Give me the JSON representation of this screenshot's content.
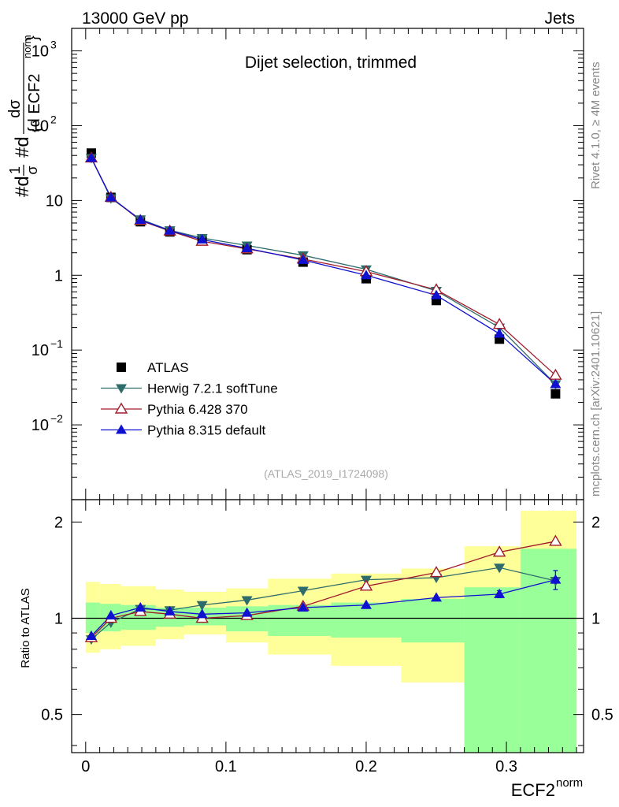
{
  "header": {
    "left": "13000 GeV pp",
    "right": "Jets"
  },
  "side": {
    "rivet": "Rivet 4.1.0, ≥ 4M events",
    "mcplots": "mcplots.cern.ch [arXiv:2401.10621]"
  },
  "chart_data": [
    {
      "type": "scatter",
      "yscale": "log",
      "title": "Dijet selection, trimmed",
      "analysis_tag": "(ATLAS_2019_I1724098)",
      "ylabel_parts": {
        "prefix": "#d",
        "frac1_num": "1",
        "frac1_den": "σ",
        "mid": "#d",
        "frac2_num": "dσ",
        "frac2_den": "{d ECF2",
        "frac2_sup": "norm",
        "frac2_close": "}"
      },
      "ylim": [
        0.001,
        2000
      ],
      "xlim": [
        -0.01,
        0.355
      ],
      "y_ticks": [
        {
          "v": 1000,
          "base": "10",
          "exp": "3"
        },
        {
          "v": 100,
          "base": "10",
          "exp": "2"
        },
        {
          "v": 10,
          "base": "10",
          "exp": ""
        },
        {
          "v": 1,
          "base": "1",
          "exp": ""
        },
        {
          "v": 0.1,
          "base": "10",
          "exp": "−1"
        },
        {
          "v": 0.01,
          "base": "10",
          "exp": "−2"
        }
      ],
      "x": [
        0.004,
        0.018,
        0.039,
        0.06,
        0.083,
        0.115,
        0.155,
        0.2,
        0.25,
        0.295,
        0.335
      ],
      "series": [
        {
          "name": "ATLAS",
          "marker": "square",
          "color": "#000000",
          "values": [
            43,
            11,
            5.2,
            3.8,
            2.9,
            2.2,
            1.5,
            0.9,
            0.46,
            0.14,
            0.026
          ]
        },
        {
          "name": "Herwig 7.2.1 softTune",
          "marker": "triangle-down",
          "color": "#2e6b6b",
          "values": [
            37,
            10.7,
            5.6,
            4.0,
            3.15,
            2.5,
            1.85,
            1.2,
            0.62,
            0.2,
            0.035
          ]
        },
        {
          "name": "Pythia 6.428 370",
          "marker": "triangle-up-open",
          "color": "#a01c2c",
          "values": [
            37,
            11,
            5.4,
            3.9,
            2.85,
            2.25,
            1.65,
            1.12,
            0.64,
            0.22,
            0.046
          ]
        },
        {
          "name": "Pythia 8.315 default",
          "marker": "triangle-up",
          "color": "#1010d0",
          "values": [
            37,
            11,
            5.5,
            3.95,
            3.0,
            2.3,
            1.6,
            1.0,
            0.54,
            0.165,
            0.035
          ]
        }
      ]
    },
    {
      "type": "scatter",
      "yscale": "log",
      "ylabel": "Ratio to ATLAS",
      "xlabel": "ECF2",
      "xlabel_sup": "norm",
      "ylim": [
        0.38,
        2.35
      ],
      "xlim": [
        -0.01,
        0.355
      ],
      "x_ticks": [
        "0",
        "0.1",
        "0.2",
        "0.3"
      ],
      "x_tick_values": [
        0,
        0.1,
        0.2,
        0.3
      ],
      "y_ticks": [
        "0.5",
        "1",
        "2"
      ],
      "y_tick_values": [
        0.5,
        1,
        2
      ],
      "reference_line": 1,
      "bin_edges": [
        0,
        0.01,
        0.025,
        0.05,
        0.07,
        0.1,
        0.13,
        0.175,
        0.225,
        0.27,
        0.31,
        0.35
      ],
      "band_inner": [
        [
          0.9,
          1.12
        ],
        [
          0.91,
          1.11
        ],
        [
          0.92,
          1.1
        ],
        [
          0.94,
          1.08
        ],
        [
          0.95,
          1.08
        ],
        [
          0.91,
          1.09
        ],
        [
          0.88,
          1.1
        ],
        [
          0.87,
          1.12
        ],
        [
          0.84,
          1.15
        ],
        [
          0.35,
          1.25
        ],
        [
          0.35,
          1.65
        ]
      ],
      "band_outer": [
        [
          0.78,
          1.3
        ],
        [
          0.8,
          1.28
        ],
        [
          0.82,
          1.26
        ],
        [
          0.86,
          1.23
        ],
        [
          0.89,
          1.21
        ],
        [
          0.84,
          1.24
        ],
        [
          0.77,
          1.33
        ],
        [
          0.71,
          1.38
        ],
        [
          0.63,
          1.43
        ],
        [
          0.35,
          1.68
        ],
        [
          0.35,
          2.17
        ]
      ],
      "band_outer_color": "#ffff99",
      "band_inner_color": "#99ff99",
      "series": [
        {
          "name": "Herwig 7.2.1 softTune",
          "marker": "triangle-down",
          "color": "#2e6b6b",
          "values": [
            0.86,
            0.97,
            1.07,
            1.06,
            1.1,
            1.14,
            1.22,
            1.32,
            1.34,
            1.44,
            1.31
          ]
        },
        {
          "name": "Pythia 6.428 370",
          "marker": "triangle-up-open",
          "color": "#a01c2c",
          "values": [
            0.87,
            1.0,
            1.05,
            1.03,
            1.0,
            1.02,
            1.09,
            1.26,
            1.39,
            1.61,
            1.74
          ]
        },
        {
          "name": "Pythia 8.315 default",
          "marker": "triangle-up",
          "color": "#1010d0",
          "values": [
            0.88,
            1.02,
            1.08,
            1.05,
            1.03,
            1.04,
            1.08,
            1.1,
            1.16,
            1.19,
            1.32
          ],
          "errors": [
            0,
            0,
            0,
            0,
            0,
            0,
            0,
            0,
            0,
            0.03,
            0.09
          ]
        }
      ]
    }
  ]
}
